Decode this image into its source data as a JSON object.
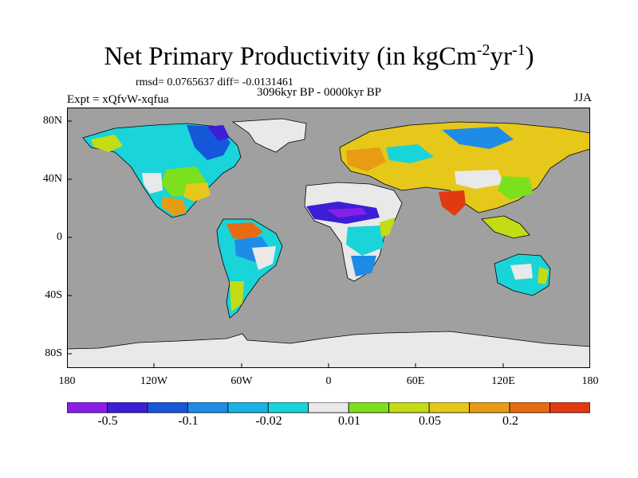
{
  "title": {
    "main": "Net Primary Productivity (in kgCm",
    "sup1": "-2",
    "mid": "yr",
    "sup2": "-1",
    "end": ")"
  },
  "stats": "rmsd= 0.0765637 diff= -0.0131461",
  "period": "3096kyr BP - 0000kyr BP",
  "experiment": "Expt = xQfvW-xqfua",
  "season": "JJA",
  "y_ticks": [
    "80N",
    "40N",
    "0",
    "40S",
    "80S"
  ],
  "x_ticks": [
    "180",
    "120W",
    "60W",
    "0",
    "60E",
    "120E",
    "180"
  ],
  "colorbar": {
    "colors": [
      "#8a1ee8",
      "#3b1fd6",
      "#1557d9",
      "#1e8ce6",
      "#18b3e6",
      "#19d4d9",
      "#e9e9e9",
      "#7de01c",
      "#c3dc14",
      "#e6c81a",
      "#e89b14",
      "#e86b12",
      "#e23a10"
    ],
    "labels": [
      "-0.5",
      "-0.1",
      "-0.02",
      "0.01",
      "0.05",
      "0.2"
    ]
  },
  "map_colors": {
    "ocean": "#a0a0a0",
    "ice": "#e9e9e9"
  }
}
